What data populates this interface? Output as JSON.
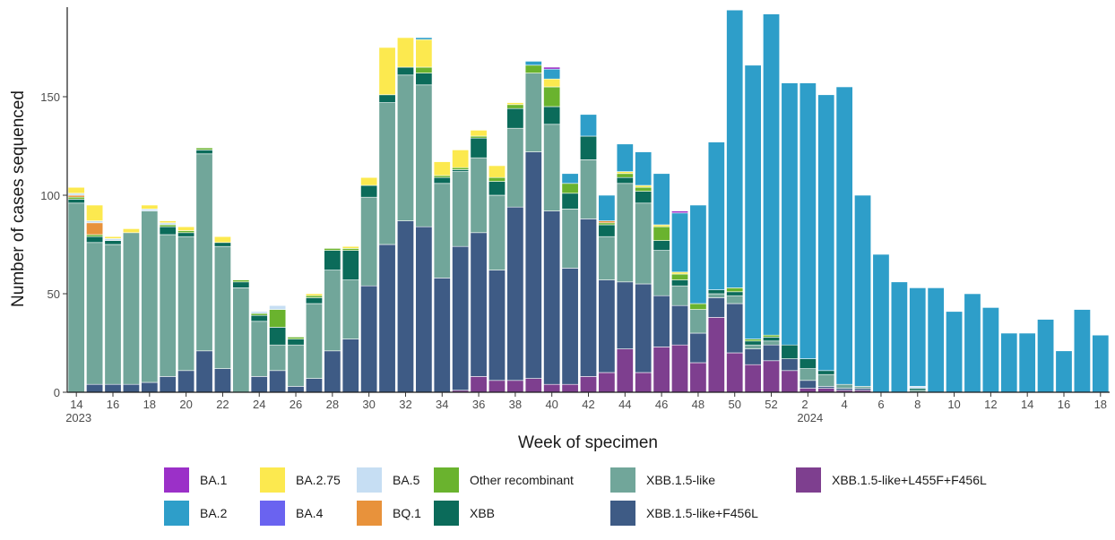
{
  "chart_data": {
    "type": "bar",
    "stacked": true,
    "xlabel": "Week of specimen",
    "ylabel": "Number of cases sequenced",
    "ylim": [
      0,
      195
    ],
    "y_ticks": [
      0,
      50,
      100,
      150
    ],
    "legend_position": "bottom",
    "grid": false,
    "categories": [
      "14",
      "15",
      "16",
      "17",
      "18",
      "19",
      "20",
      "21",
      "22",
      "23",
      "24",
      "25",
      "26",
      "27",
      "28",
      "29",
      "30",
      "31",
      "32",
      "33",
      "34",
      "35",
      "36",
      "37",
      "38",
      "39",
      "40",
      "41",
      "42",
      "43",
      "44",
      "45",
      "46",
      "47",
      "48",
      "49",
      "50",
      "51",
      "52",
      "1",
      "2",
      "3",
      "4",
      "5",
      "6",
      "7",
      "8",
      "9",
      "10",
      "11",
      "12",
      "13",
      "14",
      "15",
      "16",
      "17",
      "18"
    ],
    "x_tick_labels": [
      {
        "index": 0,
        "label": "14",
        "sublabel": "2023"
      },
      {
        "index": 2,
        "label": "16"
      },
      {
        "index": 4,
        "label": "18"
      },
      {
        "index": 6,
        "label": "20"
      },
      {
        "index": 8,
        "label": "22"
      },
      {
        "index": 10,
        "label": "24"
      },
      {
        "index": 12,
        "label": "26"
      },
      {
        "index": 14,
        "label": "28"
      },
      {
        "index": 16,
        "label": "30"
      },
      {
        "index": 18,
        "label": "32"
      },
      {
        "index": 20,
        "label": "34"
      },
      {
        "index": 22,
        "label": "36"
      },
      {
        "index": 24,
        "label": "38"
      },
      {
        "index": 26,
        "label": "40"
      },
      {
        "index": 28,
        "label": "42"
      },
      {
        "index": 30,
        "label": "44"
      },
      {
        "index": 32,
        "label": "46"
      },
      {
        "index": 34,
        "label": "48"
      },
      {
        "index": 36,
        "label": "50"
      },
      {
        "index": 38,
        "label": "52"
      },
      {
        "index": 40,
        "label": "2",
        "sublabel": "2024"
      },
      {
        "index": 42,
        "label": "4"
      },
      {
        "index": 44,
        "label": "6"
      },
      {
        "index": 46,
        "label": "8"
      },
      {
        "index": 48,
        "label": "10"
      },
      {
        "index": 50,
        "label": "12"
      },
      {
        "index": 52,
        "label": "14"
      },
      {
        "index": 54,
        "label": "16"
      },
      {
        "index": 56,
        "label": "18"
      }
    ],
    "series": [
      {
        "name": "XBB.1.5-like+L455F+F456L",
        "color": "#7e3f8f",
        "values": [
          0,
          0,
          0,
          0,
          0,
          0,
          0,
          0,
          0,
          0,
          0,
          0,
          0,
          0,
          0,
          0,
          0,
          0,
          0,
          0,
          0,
          1,
          8,
          6,
          6,
          7,
          4,
          4,
          8,
          10,
          22,
          10,
          23,
          24,
          15,
          38,
          20,
          14,
          16,
          11,
          2,
          2,
          1,
          1,
          0,
          0,
          0,
          0,
          0,
          0,
          0,
          0,
          0,
          0,
          0,
          0,
          0
        ]
      },
      {
        "name": "XBB.1.5-like+F456L",
        "color": "#3e5b85",
        "values": [
          0,
          4,
          4,
          4,
          5,
          8,
          11,
          21,
          12,
          0,
          8,
          11,
          3,
          7,
          21,
          27,
          54,
          75,
          87,
          84,
          58,
          73,
          73,
          56,
          88,
          115,
          88,
          59,
          80,
          47,
          34,
          45,
          26,
          20,
          15,
          10,
          25,
          8,
          8,
          6,
          4,
          1,
          1,
          1,
          0,
          0,
          0,
          0,
          0,
          0,
          0,
          0,
          0,
          0,
          0,
          0,
          0
        ]
      },
      {
        "name": "XBB.1.5-like",
        "color": "#71a69a",
        "values": [
          96,
          72,
          71,
          77,
          87,
          72,
          68,
          100,
          62,
          53,
          28,
          13,
          21,
          38,
          41,
          30,
          45,
          72,
          74,
          72,
          48,
          38,
          38,
          38,
          40,
          40,
          44,
          30,
          30,
          22,
          50,
          41,
          23,
          10,
          12,
          2,
          4,
          2,
          2,
          0,
          6,
          6,
          2,
          1,
          0,
          0,
          1,
          0,
          0,
          0,
          0,
          0,
          0,
          0,
          0,
          0,
          0
        ]
      },
      {
        "name": "XBB",
        "color": "#0b6b5a",
        "values": [
          2,
          3,
          2,
          0,
          0,
          4,
          2,
          2,
          2,
          3,
          3,
          9,
          3,
          3,
          10,
          15,
          6,
          4,
          4,
          6,
          3,
          1,
          10,
          7,
          10,
          0,
          9,
          8,
          12,
          6,
          3,
          6,
          5,
          3,
          0,
          2,
          2,
          2,
          2,
          7,
          5,
          2,
          0,
          0,
          0,
          0,
          1,
          0,
          0,
          0,
          0,
          0,
          0,
          0,
          0,
          0,
          0
        ]
      },
      {
        "name": "Other recombinant",
        "color": "#6ab32e",
        "values": [
          1,
          1,
          0,
          0,
          0,
          1,
          1,
          1,
          0,
          1,
          1,
          9,
          1,
          1,
          1,
          1,
          0,
          0,
          0,
          3,
          1,
          1,
          1,
          2,
          2,
          4,
          10,
          5,
          0,
          1,
          2,
          2,
          7,
          3,
          3,
          0,
          2,
          1,
          1,
          0,
          0,
          0,
          0,
          0,
          0,
          0,
          0,
          0,
          0,
          0,
          0,
          0,
          0,
          0,
          0,
          0,
          0
        ]
      },
      {
        "name": "BQ.1",
        "color": "#e8923b",
        "values": [
          1,
          6,
          0,
          0,
          0,
          0,
          0,
          0,
          0,
          0,
          0,
          0,
          0,
          0,
          0,
          0,
          0,
          0,
          0,
          0,
          0,
          0,
          0,
          0,
          0,
          0,
          0,
          0,
          0,
          1,
          0,
          0,
          0,
          0,
          0,
          0,
          0,
          0,
          0,
          0,
          0,
          0,
          0,
          0,
          0,
          0,
          0,
          0,
          0,
          0,
          0,
          0,
          0,
          0,
          0,
          0,
          0
        ]
      },
      {
        "name": "BA.5",
        "color": "#c6def3",
        "values": [
          1,
          1,
          1,
          0,
          1,
          1,
          0,
          0,
          0,
          0,
          1,
          2,
          0,
          0,
          0,
          0,
          0,
          0,
          0,
          0,
          0,
          0,
          0,
          0,
          0,
          0,
          0,
          0,
          0,
          0,
          0,
          0,
          0,
          0,
          0,
          0,
          0,
          0,
          0,
          0,
          0,
          0,
          0,
          0,
          0,
          0,
          1,
          0,
          0,
          0,
          0,
          0,
          0,
          0,
          0,
          0,
          0
        ]
      },
      {
        "name": "BA.4",
        "color": "#6a63f0",
        "values": [
          0,
          0,
          0,
          0,
          0,
          0,
          0,
          0,
          0,
          0,
          0,
          0,
          0,
          0,
          0,
          0,
          0,
          0,
          0,
          0,
          0,
          0,
          0,
          0,
          0,
          0,
          0,
          0,
          0,
          0,
          0,
          0,
          0,
          0,
          0,
          0,
          0,
          0,
          0,
          0,
          0,
          0,
          0,
          0,
          0,
          0,
          0,
          0,
          0,
          0,
          0,
          0,
          0,
          0,
          0,
          0,
          0
        ]
      },
      {
        "name": "BA.2.75",
        "color": "#fce94f",
        "values": [
          3,
          8,
          1,
          2,
          2,
          1,
          2,
          0,
          3,
          0,
          0,
          0,
          0,
          1,
          0,
          1,
          4,
          24,
          15,
          14,
          7,
          9,
          3,
          6,
          1,
          0,
          4,
          0,
          0,
          0,
          1,
          1,
          1,
          1,
          0,
          0,
          0,
          0,
          0,
          0,
          0,
          0,
          0,
          0,
          0,
          0,
          0,
          0,
          0,
          0,
          0,
          0,
          0,
          0,
          0,
          0,
          0
        ]
      },
      {
        "name": "BA.2",
        "color": "#2e9ec9",
        "values": [
          0,
          0,
          0,
          0,
          0,
          0,
          0,
          0,
          0,
          0,
          0,
          0,
          0,
          0,
          0,
          0,
          0,
          0,
          0,
          1,
          0,
          0,
          0,
          0,
          0,
          2,
          5,
          5,
          11,
          13,
          14,
          17,
          26,
          30,
          50,
          75,
          141,
          139,
          163,
          133,
          140,
          140,
          151,
          97,
          70,
          56,
          50,
          53,
          41,
          50,
          43,
          30,
          30,
          37,
          21,
          42,
          29
        ]
      },
      {
        "name": "BA.1",
        "color": "#9b30c8",
        "values": [
          0,
          0,
          0,
          0,
          0,
          0,
          0,
          0,
          0,
          0,
          0,
          0,
          0,
          0,
          0,
          0,
          0,
          0,
          0,
          0,
          0,
          0,
          0,
          0,
          0,
          0,
          1,
          0,
          0,
          0,
          0,
          0,
          0,
          1,
          0,
          0,
          0,
          0,
          0,
          0,
          0,
          0,
          0,
          0,
          0,
          0,
          0,
          0,
          0,
          0,
          0,
          0,
          0,
          0,
          0,
          0,
          0
        ]
      }
    ]
  },
  "legend": {
    "items": [
      {
        "label": "BA.1",
        "color": "#9b30c8"
      },
      {
        "label": "BA.2",
        "color": "#2e9ec9"
      },
      {
        "label": "BA.2.75",
        "color": "#fce94f"
      },
      {
        "label": "BA.4",
        "color": "#6a63f0"
      },
      {
        "label": "BA.5",
        "color": "#c6def3"
      },
      {
        "label": "BQ.1",
        "color": "#e8923b"
      },
      {
        "label": "Other recombinant",
        "color": "#6ab32e"
      },
      {
        "label": "XBB",
        "color": "#0b6b5a"
      },
      {
        "label": "XBB.1.5-like",
        "color": "#71a69a"
      },
      {
        "label": "XBB.1.5-like+F456L",
        "color": "#3e5b85"
      },
      {
        "label": "XBB.1.5-like+L455F+F456L",
        "color": "#7e3f8f"
      }
    ]
  }
}
